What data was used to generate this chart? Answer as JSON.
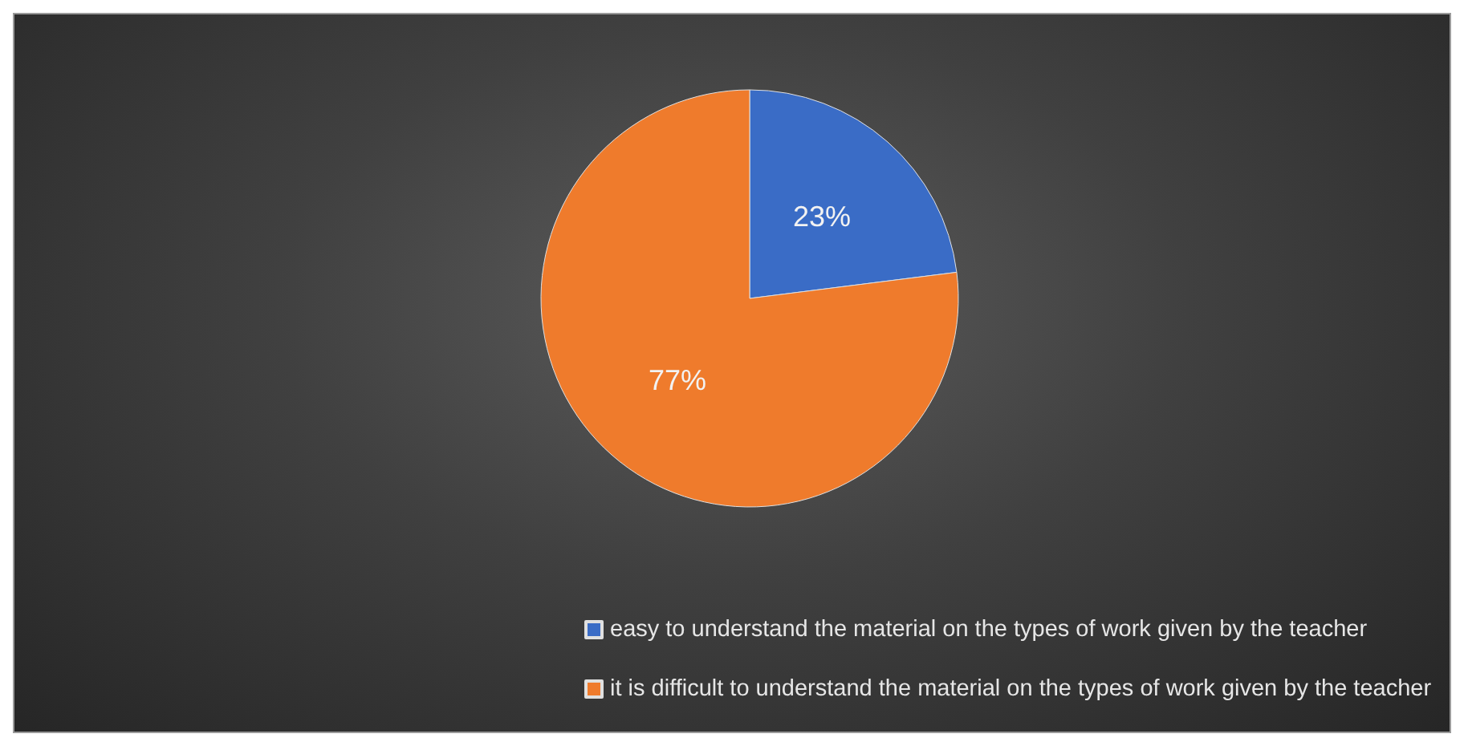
{
  "chart_data": {
    "type": "pie",
    "categories": [
      "easy to understand the material on the types of work given by the teacher",
      "it is difficult to understand the material on the types of work given by the teacher"
    ],
    "values": [
      23,
      77
    ],
    "colors": [
      "#3a6cc6",
      "#ef7b2c"
    ],
    "value_labels": [
      "23%",
      "77%"
    ],
    "legend": "bottom"
  }
}
